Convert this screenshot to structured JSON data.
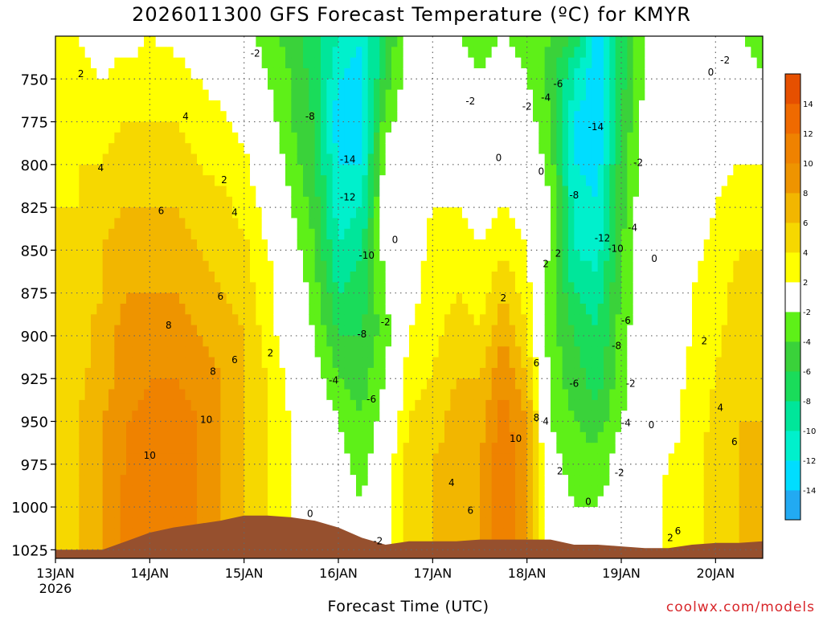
{
  "title": "2026011300 GFS Forecast Temperature (ºC) for KMYR",
  "xlabel": "Forecast Time (UTC)",
  "credit": "coolwx.com/models",
  "chart_data": {
    "type": "heatmap",
    "title": "2026011300 GFS Forecast Temperature (ºC) for KMYR",
    "xlabel": "Forecast Time (UTC)",
    "ylabel": "",
    "x_ticks": [
      "13JAN",
      "14JAN",
      "15JAN",
      "16JAN",
      "17JAN",
      "18JAN",
      "19JAN",
      "20JAN"
    ],
    "x_sub": "2026",
    "xlim_days": [
      0,
      7.5
    ],
    "y_ticks": [
      750,
      775,
      800,
      825,
      850,
      875,
      900,
      925,
      950,
      975,
      1000,
      1025
    ],
    "ylim_hpa": [
      725,
      1030
    ],
    "grid": true,
    "colorbar": {
      "levels": [
        -16,
        -14,
        -12,
        -10,
        -8,
        -6,
        -4,
        -2,
        2,
        4,
        6,
        8,
        10,
        12,
        14,
        16
      ],
      "labels": [
        "-14",
        "-12",
        "-10",
        "-8",
        "-6",
        "-4",
        "-2",
        "2",
        "4",
        "6",
        "8",
        "10",
        "12",
        "14"
      ],
      "colors": [
        "#22aaf2",
        "#00ddff",
        "#00f0cc",
        "#00e69a",
        "#1adc5a",
        "#3ad23a",
        "#5ef018",
        "#ffffff",
        "#ffff00",
        "#f6d800",
        "#f2b600",
        "#ee9400",
        "#ef8200",
        "#ef6a00",
        "#e65000"
      ]
    },
    "ground_color": "#96502e",
    "columns": [
      {
        "t": 0.0,
        "temps": [
          2,
          3,
          3,
          3.5,
          4,
          4,
          4.5,
          4.5,
          5,
          5,
          5,
          5,
          5
        ]
      },
      {
        "t": 0.25,
        "temps": [
          2,
          2.5,
          3,
          4,
          4,
          5,
          5,
          5,
          5.5,
          6,
          6,
          6,
          6
        ]
      },
      {
        "t": 0.5,
        "temps": [
          1,
          2,
          3,
          4,
          5,
          6,
          6,
          7,
          7,
          8,
          8,
          8,
          8
        ]
      },
      {
        "t": 0.75,
        "temps": [
          1,
          3,
          4,
          5,
          6,
          7,
          8,
          9,
          9,
          10,
          10,
          11,
          11
        ]
      },
      {
        "t": 1.0,
        "temps": [
          2,
          3,
          4,
          5,
          6,
          7,
          8,
          9,
          10,
          10.5,
          11,
          11,
          11
        ]
      },
      {
        "t": 1.25,
        "temps": [
          1.5,
          3,
          4,
          5,
          6,
          7,
          8,
          9,
          10,
          11,
          11,
          11,
          11
        ]
      },
      {
        "t": 1.5,
        "temps": [
          1,
          2,
          3,
          4,
          5,
          6,
          7,
          8,
          9,
          10,
          10,
          10,
          10
        ]
      },
      {
        "t": 1.75,
        "temps": [
          0,
          1,
          2.5,
          3.5,
          4.5,
          5,
          6,
          7,
          8,
          8,
          8,
          8,
          8
        ]
      },
      {
        "t": 2.0,
        "temps": [
          -1,
          0,
          1,
          2.5,
          3.5,
          4.5,
          5,
          6,
          6,
          6,
          6,
          6,
          6
        ]
      },
      {
        "t": 2.25,
        "temps": [
          -3,
          -2,
          -1,
          0,
          1,
          2,
          3,
          3,
          4,
          4,
          4,
          4,
          4
        ]
      },
      {
        "t": 2.5,
        "temps": [
          -5,
          -4,
          -4,
          -3,
          -2,
          -1,
          0,
          0,
          1,
          2,
          2,
          2,
          2
        ]
      },
      {
        "t": 2.75,
        "temps": [
          -7,
          -7,
          -6,
          -6,
          -5,
          -4,
          -3,
          -2,
          -1,
          0.5,
          1,
          1,
          1
        ]
      },
      {
        "t": 3.0,
        "temps": [
          -10,
          -12,
          -14,
          -12,
          -11,
          -10,
          -8,
          -6,
          -4,
          -2,
          -1,
          0,
          0
        ]
      },
      {
        "t": 3.25,
        "temps": [
          -12,
          -13,
          -12,
          -12,
          -10,
          -8,
          -7,
          -6,
          -5,
          -4,
          -3,
          -2,
          -2
        ]
      },
      {
        "t": 3.5,
        "temps": [
          -6,
          -5,
          -3,
          -1,
          0,
          -1,
          -2,
          -3,
          -2,
          -1,
          1,
          1,
          1
        ]
      },
      {
        "t": 3.75,
        "temps": [
          -1,
          -1,
          0,
          0,
          1,
          1,
          1,
          2,
          3,
          4,
          5,
          5,
          5
        ]
      },
      {
        "t": 4.0,
        "temps": [
          -1,
          0,
          1,
          1.5,
          2,
          2.5,
          3,
          3.5,
          4,
          5,
          6,
          6,
          6
        ]
      },
      {
        "t": 4.25,
        "temps": [
          -2,
          -1,
          0,
          1,
          2,
          3,
          4,
          5,
          6,
          7,
          7,
          7,
          7
        ]
      },
      {
        "t": 4.5,
        "temps": [
          -3,
          -2,
          -1,
          0,
          1,
          2,
          3,
          4,
          6,
          7,
          8,
          8,
          8
        ]
      },
      {
        "t": 4.75,
        "temps": [
          -2,
          -1,
          0,
          1,
          2,
          4,
          6,
          8,
          10,
          11,
          12,
          12,
          12
        ]
      },
      {
        "t": 5.0,
        "temps": [
          -3,
          -2,
          -1,
          0,
          1,
          2,
          3,
          4,
          6,
          8,
          8,
          8,
          8
        ]
      },
      {
        "t": 5.25,
        "temps": [
          -4,
          -5,
          -4,
          -3,
          -2,
          -2.5,
          -3,
          -3,
          -3,
          -2,
          -1,
          0,
          0
        ]
      },
      {
        "t": 5.5,
        "temps": [
          -6,
          -10,
          -12,
          -12,
          -11,
          -10,
          -8,
          -6,
          -5,
          -4,
          -3,
          -2,
          -2
        ]
      },
      {
        "t": 5.75,
        "temps": [
          -14,
          -14,
          -14,
          -13,
          -12,
          -11,
          -9,
          -8,
          -7,
          -5,
          -3,
          -2,
          -2
        ]
      },
      {
        "t": 6.0,
        "temps": [
          -7,
          -7,
          -6,
          -5,
          -5,
          -4,
          -4,
          -3,
          -3,
          -2,
          -1,
          -1,
          -1
        ]
      },
      {
        "t": 6.25,
        "temps": [
          -2,
          -2,
          -1,
          -1,
          0,
          0,
          0,
          0,
          0,
          0,
          0,
          0,
          0
        ]
      },
      {
        "t": 6.5,
        "temps": [
          -1,
          0,
          0,
          0,
          0,
          1,
          1,
          1,
          1,
          1,
          2,
          3,
          3
        ]
      },
      {
        "t": 6.75,
        "temps": [
          -1,
          -1,
          0,
          1,
          1,
          1.5,
          2,
          2,
          2.5,
          3,
          3,
          3,
          3
        ]
      },
      {
        "t": 7.0,
        "temps": [
          -1,
          -1,
          0,
          1,
          2,
          2.5,
          3,
          3.5,
          4,
          4.5,
          5,
          5,
          5
        ]
      },
      {
        "t": 7.25,
        "temps": [
          -2,
          -1,
          0,
          2,
          3,
          4,
          5,
          5,
          5.5,
          6,
          6,
          6,
          6
        ]
      },
      {
        "t": 7.5,
        "temps": [
          -3,
          -2,
          0,
          2,
          3,
          4,
          4.5,
          5,
          6,
          6,
          6,
          6,
          6
        ]
      }
    ],
    "levels_hpa": [
      725,
      750,
      775,
      800,
      825,
      850,
      875,
      900,
      925,
      950,
      975,
      1000,
      1025
    ],
    "surface_hpa": [
      [
        0.0,
        1025
      ],
      [
        0.5,
        1025
      ],
      [
        0.75,
        1020
      ],
      [
        1.0,
        1015
      ],
      [
        1.25,
        1012
      ],
      [
        1.5,
        1010
      ],
      [
        1.75,
        1008
      ],
      [
        2.0,
        1005
      ],
      [
        2.25,
        1005
      ],
      [
        2.5,
        1006
      ],
      [
        2.75,
        1008
      ],
      [
        3.0,
        1012
      ],
      [
        3.25,
        1018
      ],
      [
        3.5,
        1022
      ],
      [
        3.75,
        1020
      ],
      [
        4.0,
        1020
      ],
      [
        4.25,
        1020
      ],
      [
        4.5,
        1019
      ],
      [
        4.75,
        1019
      ],
      [
        5.0,
        1019
      ],
      [
        5.25,
        1019
      ],
      [
        5.5,
        1022
      ],
      [
        5.75,
        1022
      ],
      [
        6.0,
        1023
      ],
      [
        6.25,
        1024
      ],
      [
        6.5,
        1024
      ],
      [
        6.75,
        1022
      ],
      [
        7.0,
        1021
      ],
      [
        7.25,
        1021
      ],
      [
        7.5,
        1020
      ]
    ],
    "contour_labels": [
      {
        "t": 0.27,
        "p": 747,
        "v": "2"
      },
      {
        "t": 1.38,
        "p": 772,
        "v": "4"
      },
      {
        "t": 0.48,
        "p": 802,
        "v": "4"
      },
      {
        "t": 1.12,
        "p": 827,
        "v": "6"
      },
      {
        "t": 1.9,
        "p": 828,
        "v": "4"
      },
      {
        "t": 1.79,
        "p": 809,
        "v": "2"
      },
      {
        "t": 1.75,
        "p": 877,
        "v": "6"
      },
      {
        "t": 1.2,
        "p": 894,
        "v": "8"
      },
      {
        "t": 1.9,
        "p": 914,
        "v": "6"
      },
      {
        "t": 1.67,
        "p": 921,
        "v": "8"
      },
      {
        "t": 2.28,
        "p": 910,
        "v": "2"
      },
      {
        "t": 1.6,
        "p": 949,
        "v": "10"
      },
      {
        "t": 1.0,
        "p": 970,
        "v": "10"
      },
      {
        "t": 2.12,
        "p": 735,
        "v": "-2"
      },
      {
        "t": 2.7,
        "p": 772,
        "v": "-8"
      },
      {
        "t": 3.1,
        "p": 797,
        "v": "-14"
      },
      {
        "t": 3.1,
        "p": 819,
        "v": "-12"
      },
      {
        "t": 3.3,
        "p": 853,
        "v": "-10"
      },
      {
        "t": 3.5,
        "p": 892,
        "v": "-2"
      },
      {
        "t": 3.25,
        "p": 899,
        "v": "-8"
      },
      {
        "t": 2.95,
        "p": 926,
        "v": "-4"
      },
      {
        "t": 3.35,
        "p": 937,
        "v": "-6"
      },
      {
        "t": 3.6,
        "p": 844,
        "v": "0"
      },
      {
        "t": 2.7,
        "p": 1004,
        "v": "0"
      },
      {
        "t": 3.42,
        "p": 1020,
        "v": "-2"
      },
      {
        "t": 4.4,
        "p": 763,
        "v": "-2"
      },
      {
        "t": 4.7,
        "p": 796,
        "v": "0"
      },
      {
        "t": 5.0,
        "p": 766,
        "v": "-2"
      },
      {
        "t": 5.2,
        "p": 761,
        "v": "-4"
      },
      {
        "t": 5.33,
        "p": 753,
        "v": "-6"
      },
      {
        "t": 5.15,
        "p": 804,
        "v": "0"
      },
      {
        "t": 4.2,
        "p": 986,
        "v": "4"
      },
      {
        "t": 4.75,
        "p": 878,
        "v": "2"
      },
      {
        "t": 5.2,
        "p": 858,
        "v": "2"
      },
      {
        "t": 5.33,
        "p": 852,
        "v": "2"
      },
      {
        "t": 4.4,
        "p": 1002,
        "v": "6"
      },
      {
        "t": 5.1,
        "p": 916,
        "v": "6"
      },
      {
        "t": 5.1,
        "p": 948,
        "v": "8"
      },
      {
        "t": 5.2,
        "p": 950,
        "v": "4"
      },
      {
        "t": 4.88,
        "p": 960,
        "v": "10"
      },
      {
        "t": 5.35,
        "p": 979,
        "v": "2"
      },
      {
        "t": 5.65,
        "p": 997,
        "v": "0"
      },
      {
        "t": 5.73,
        "p": 778,
        "v": "-14"
      },
      {
        "t": 5.5,
        "p": 818,
        "v": "-8"
      },
      {
        "t": 5.8,
        "p": 843,
        "v": "-12"
      },
      {
        "t": 5.94,
        "p": 849,
        "v": "-10"
      },
      {
        "t": 6.18,
        "p": 799,
        "v": "-2"
      },
      {
        "t": 6.12,
        "p": 837,
        "v": "-4"
      },
      {
        "t": 6.05,
        "p": 891,
        "v": "-6"
      },
      {
        "t": 5.95,
        "p": 906,
        "v": "-8"
      },
      {
        "t": 5.5,
        "p": 928,
        "v": "-6"
      },
      {
        "t": 5.98,
        "p": 980,
        "v": "-2"
      },
      {
        "t": 6.1,
        "p": 928,
        "v": "-2"
      },
      {
        "t": 6.05,
        "p": 951,
        "v": "-4"
      },
      {
        "t": 6.35,
        "p": 855,
        "v": "0"
      },
      {
        "t": 6.32,
        "p": 952,
        "v": "0"
      },
      {
        "t": 6.95,
        "p": 746,
        "v": "0"
      },
      {
        "t": 7.1,
        "p": 739,
        "v": "-2"
      },
      {
        "t": 6.88,
        "p": 903,
        "v": "2"
      },
      {
        "t": 7.05,
        "p": 942,
        "v": "4"
      },
      {
        "t": 7.2,
        "p": 962,
        "v": "6"
      },
      {
        "t": 6.6,
        "p": 1014,
        "v": "6"
      },
      {
        "t": 6.52,
        "p": 1018,
        "v": "2"
      }
    ]
  }
}
